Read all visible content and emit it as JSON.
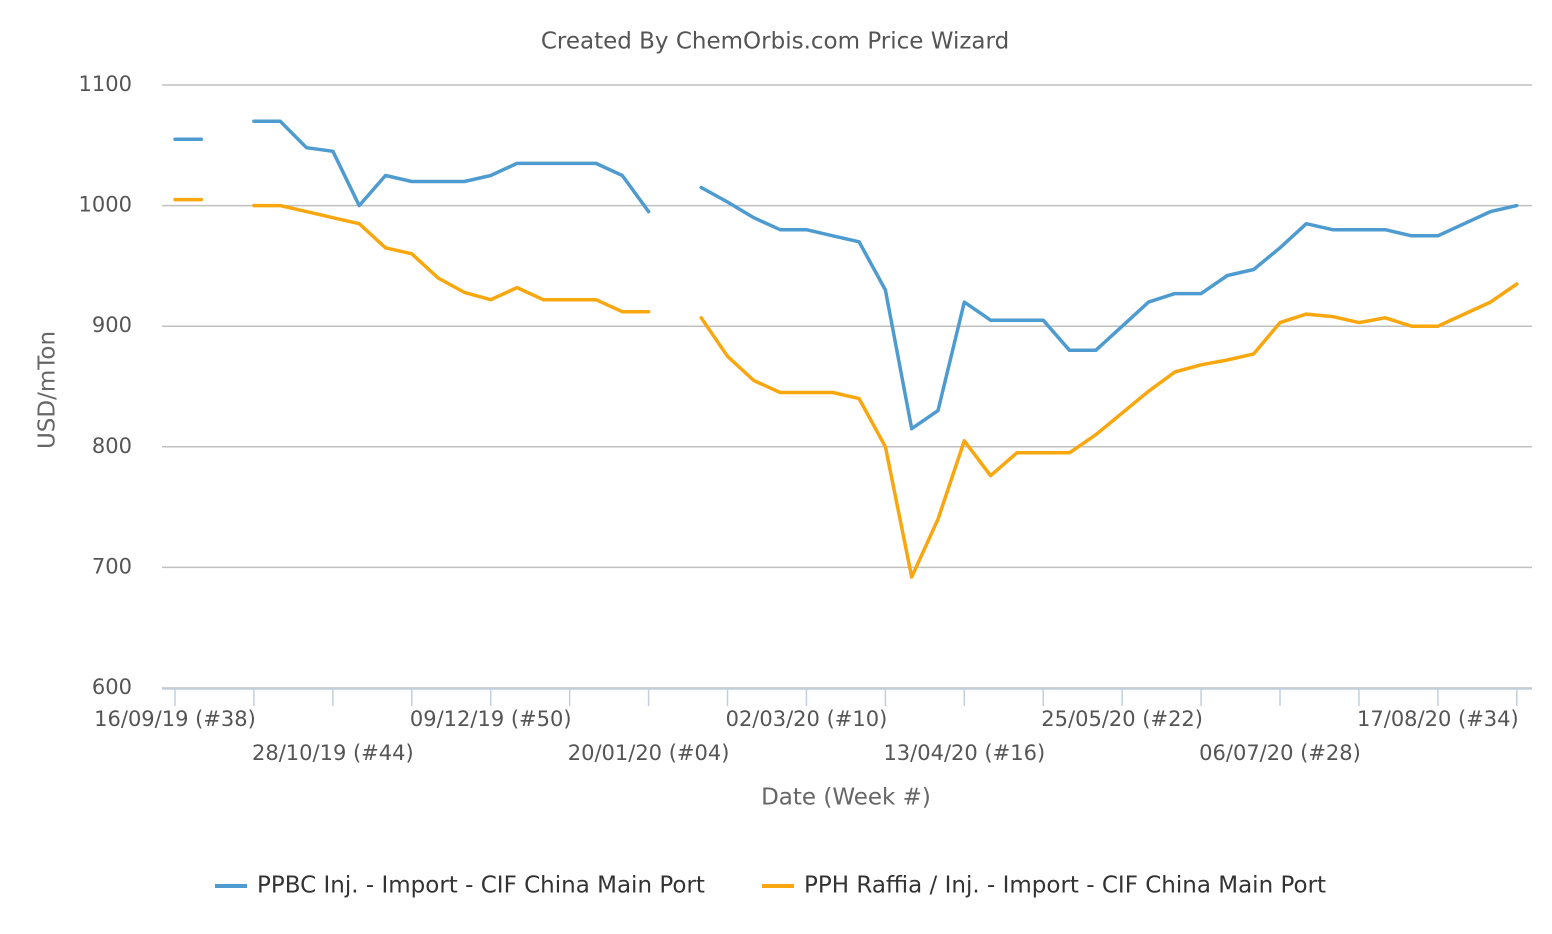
{
  "chart_data": {
    "type": "line",
    "title": "Created By ChemOrbis.com Price Wizard",
    "x_label": "Date (Week #)",
    "y_label": "USD/mTon",
    "categories": [
      "16/09/19 (#38)",
      null,
      null,
      null,
      null,
      null,
      "28/10/19 (#44)",
      null,
      null,
      null,
      null,
      null,
      "09/12/19 (#50)",
      null,
      null,
      null,
      null,
      null,
      "20/01/20 (#04)",
      null,
      null,
      null,
      null,
      null,
      "02/03/20 (#10)",
      null,
      null,
      null,
      null,
      null,
      "13/04/20 (#16)",
      null,
      null,
      null,
      null,
      null,
      "25/05/20 (#22)",
      null,
      null,
      null,
      null,
      null,
      "06/07/20 (#28)",
      null,
      null,
      null,
      null,
      null,
      "17/08/20 (#34)",
      null,
      null,
      null
    ],
    "series": [
      {
        "name": "PPBC Inj. - Import - CIF China Main Port",
        "color": "#4e9bd0",
        "values": [
          1055,
          1055,
          null,
          1070,
          1070,
          1048,
          1045,
          1000,
          1025,
          1020,
          1020,
          1020,
          1025,
          1035,
          1035,
          1035,
          1035,
          1025,
          995,
          null,
          1015,
          1003,
          990,
          980,
          980,
          975,
          970,
          930,
          815,
          830,
          920,
          905,
          905,
          905,
          880,
          880,
          900,
          920,
          927,
          927,
          942,
          947,
          965,
          985,
          980,
          980,
          980,
          975,
          975,
          985,
          995,
          1000
        ]
      },
      {
        "name": "PPH Raffia / Inj. - Import - CIF China Main Port",
        "color": "#f9a70f",
        "values": [
          1005,
          1005,
          null,
          1000,
          1000,
          995,
          990,
          985,
          965,
          960,
          940,
          928,
          922,
          932,
          922,
          922,
          922,
          912,
          912,
          null,
          907,
          875,
          855,
          845,
          845,
          845,
          840,
          800,
          692,
          740,
          805,
          776,
          795,
          795,
          795,
          810,
          828,
          846,
          862,
          868,
          872,
          877,
          903,
          910,
          908,
          903,
          907,
          900,
          900,
          910,
          920,
          935
        ]
      }
    ],
    "ylim": [
      600,
      1100
    ],
    "yticks": [
      600,
      700,
      800,
      900,
      1000,
      1100
    ],
    "grid": true,
    "legend": "bottom"
  }
}
